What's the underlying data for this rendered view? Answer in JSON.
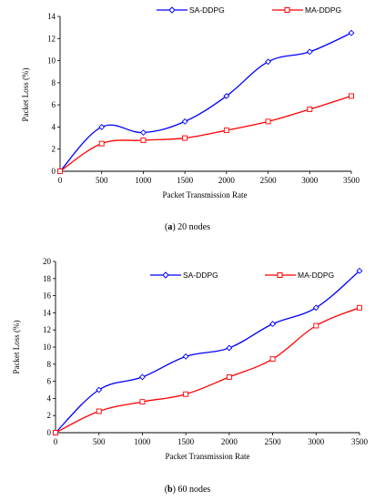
{
  "chart_data": [
    {
      "type": "line",
      "caption_letter": "a",
      "caption_text": "20 nodes",
      "xlabel": "Packet Transmission Rate",
      "ylabel": "Packet Loss (%)",
      "x": [
        0,
        500,
        1000,
        1500,
        2000,
        2500,
        3000,
        3500
      ],
      "xticks": [
        "0",
        "500",
        "1000",
        "1500",
        "2000",
        "2500",
        "3000",
        "3500"
      ],
      "xlim": [
        0,
        3500
      ],
      "ylim": [
        0,
        14
      ],
      "yticks": [
        "0",
        "2",
        "4",
        "6",
        "8",
        "10",
        "12",
        "14"
      ],
      "ytick_values": [
        0,
        2,
        4,
        6,
        8,
        10,
        12,
        14
      ],
      "grid": false,
      "legend_position": "top",
      "series": [
        {
          "name": "SA-DDPG",
          "color": "#0000ff",
          "marker": "diamond",
          "values": [
            0,
            4.0,
            3.5,
            4.5,
            6.8,
            9.9,
            10.8,
            12.5
          ]
        },
        {
          "name": "MA-DDPG",
          "color": "#ff0000",
          "marker": "square",
          "values": [
            0,
            2.5,
            2.8,
            3.0,
            3.7,
            4.5,
            5.6,
            6.8
          ]
        }
      ]
    },
    {
      "type": "line",
      "caption_letter": "b",
      "caption_text": "60 nodes",
      "xlabel": "Packet Transmission Rate",
      "ylabel": "Packet Loss (%)",
      "x": [
        0,
        500,
        1000,
        1500,
        2000,
        2500,
        3000,
        3500
      ],
      "xticks": [
        "0",
        "500",
        "1000",
        "1500",
        "2000",
        "2500",
        "3000",
        "3500"
      ],
      "xlim": [
        0,
        3500
      ],
      "ylim": [
        0,
        20
      ],
      "yticks": [
        "0",
        "2",
        "4",
        "6",
        "8",
        "10",
        "12",
        "14",
        "16",
        "18",
        "20"
      ],
      "ytick_values": [
        0,
        2,
        4,
        6,
        8,
        10,
        12,
        14,
        16,
        18,
        20
      ],
      "grid": false,
      "legend_position": "top",
      "series": [
        {
          "name": "SA-DDPG",
          "color": "#0000ff",
          "marker": "diamond",
          "values": [
            0,
            5.0,
            6.5,
            8.9,
            9.9,
            12.7,
            14.6,
            18.9
          ]
        },
        {
          "name": "MA-DDPG",
          "color": "#ff0000",
          "marker": "square",
          "values": [
            0,
            2.5,
            3.6,
            4.5,
            6.5,
            8.6,
            12.5,
            14.6
          ]
        }
      ]
    }
  ]
}
